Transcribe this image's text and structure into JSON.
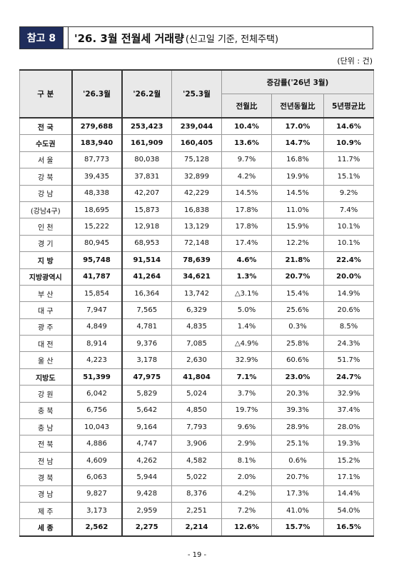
{
  "header": {
    "label": "참고 8",
    "title": "'26. 3월 전월세 거래량",
    "subtitle": "(신고일 기준, 전체주택)"
  },
  "unit": "(단위 : 건)",
  "table": {
    "columns": [
      "구 분",
      "'26.3월",
      "'26.2월",
      "'25.3월"
    ],
    "group": "증감률('26년 3월)",
    "subcolumns": [
      "전월比",
      "전년동월比",
      "5년평균比"
    ],
    "rows": [
      [
        "전 국",
        "279,688",
        "253,423",
        "239,044",
        "10.4%",
        "17.0%",
        "14.6%"
      ],
      [
        "수도권",
        "183,940",
        "161,909",
        "160,405",
        "13.6%",
        "14.7%",
        "10.9%"
      ],
      [
        "서 울",
        "87,773",
        "80,038",
        "75,128",
        "9.7%",
        "16.8%",
        "11.7%"
      ],
      [
        "강 북",
        "39,435",
        "37,831",
        "32,899",
        "4.2%",
        "19.9%",
        "15.1%"
      ],
      [
        "강 남",
        "48,338",
        "42,207",
        "42,229",
        "14.5%",
        "14.5%",
        "9.2%"
      ],
      [
        "(강남4구)",
        "18,695",
        "15,873",
        "16,838",
        "17.8%",
        "11.0%",
        "7.4%"
      ],
      [
        "인 천",
        "15,222",
        "12,918",
        "13,129",
        "17.8%",
        "15.9%",
        "10.1%"
      ],
      [
        "경 기",
        "80,945",
        "68,953",
        "72,148",
        "17.4%",
        "12.2%",
        "10.1%"
      ],
      [
        "지 방",
        "95,748",
        "91,514",
        "78,639",
        "4.6%",
        "21.8%",
        "22.4%"
      ],
      [
        "지방광역시",
        "41,787",
        "41,264",
        "34,621",
        "1.3%",
        "20.7%",
        "20.0%"
      ],
      [
        "부 산",
        "15,854",
        "16,364",
        "13,742",
        "△3.1%",
        "15.4%",
        "14.9%"
      ],
      [
        "대 구",
        "7,947",
        "7,565",
        "6,329",
        "5.0%",
        "25.6%",
        "20.6%"
      ],
      [
        "광 주",
        "4,849",
        "4,781",
        "4,835",
        "1.4%",
        "0.3%",
        "8.5%"
      ],
      [
        "대 전",
        "8,914",
        "9,376",
        "7,085",
        "△4.9%",
        "25.8%",
        "24.3%"
      ],
      [
        "울 산",
        "4,223",
        "3,178",
        "2,630",
        "32.9%",
        "60.6%",
        "51.7%"
      ],
      [
        "지방도",
        "51,399",
        "47,975",
        "41,804",
        "7.1%",
        "23.0%",
        "24.7%"
      ],
      [
        "강 원",
        "6,042",
        "5,829",
        "5,024",
        "3.7%",
        "20.3%",
        "32.9%"
      ],
      [
        "충 북",
        "6,756",
        "5,642",
        "4,850",
        "19.7%",
        "39.3%",
        "37.4%"
      ],
      [
        "충 남",
        "10,043",
        "9,164",
        "7,793",
        "9.6%",
        "28.9%",
        "28.0%"
      ],
      [
        "전 북",
        "4,886",
        "4,747",
        "3,906",
        "2.9%",
        "25.1%",
        "19.3%"
      ],
      [
        "전 남",
        "4,609",
        "4,262",
        "4,582",
        "8.1%",
        "0.6%",
        "15.2%"
      ],
      [
        "경 북",
        "6,063",
        "5,944",
        "5,022",
        "2.0%",
        "20.7%",
        "17.1%"
      ],
      [
        "경 남",
        "9,827",
        "9,428",
        "8,376",
        "4.2%",
        "17.3%",
        "14.4%"
      ],
      [
        "제 주",
        "3,173",
        "2,959",
        "2,251",
        "7.2%",
        "41.0%",
        "54.0%"
      ],
      [
        "세 종",
        "2,562",
        "2,275",
        "2,214",
        "12.6%",
        "15.7%",
        "16.5%"
      ]
    ]
  },
  "footer": "- 19 -"
}
